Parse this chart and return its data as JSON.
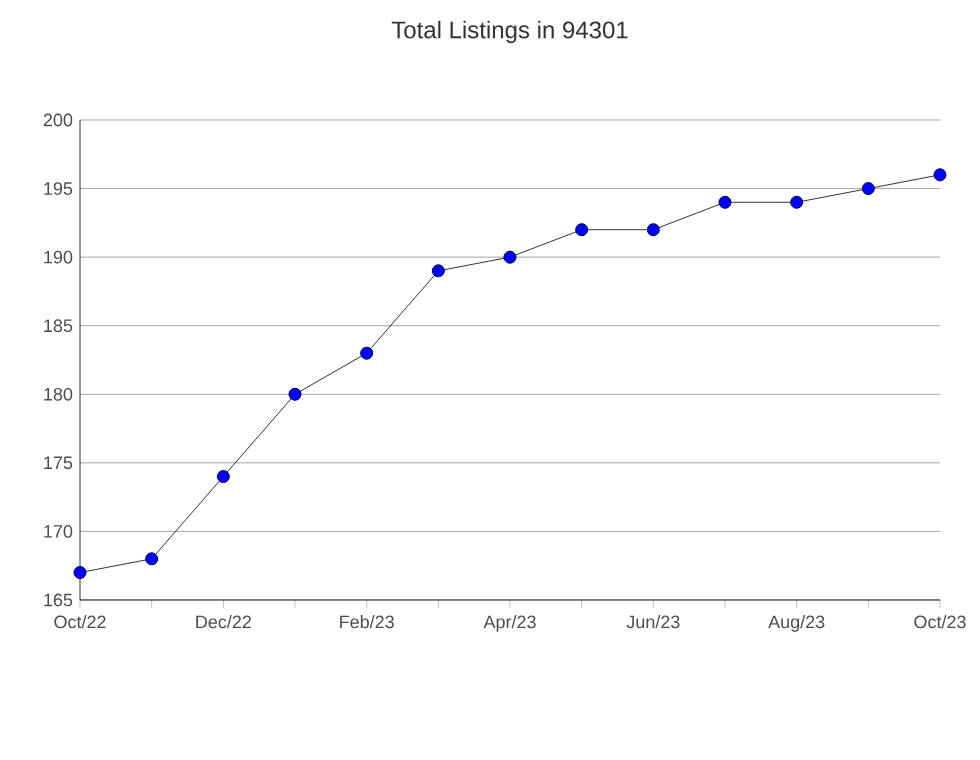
{
  "chart_data": {
    "type": "line",
    "title": "Total Listings in 94301",
    "categories": [
      "Oct/22",
      null,
      "Dec/22",
      null,
      "Feb/23",
      null,
      "Apr/23",
      null,
      "Jun/23",
      null,
      "Aug/23",
      null,
      "Oct/23"
    ],
    "series": [
      {
        "color": "#0000ff",
        "values": [
          167,
          168,
          174,
          180,
          183,
          189,
          190,
          192,
          192,
          194,
          194,
          195,
          196
        ]
      }
    ],
    "ylim": [
      165,
      200
    ],
    "yticks": [
      165,
      170,
      175,
      180,
      185,
      190,
      195,
      200
    ],
    "grid": "y",
    "marker": "circle",
    "line_style": "solid"
  }
}
